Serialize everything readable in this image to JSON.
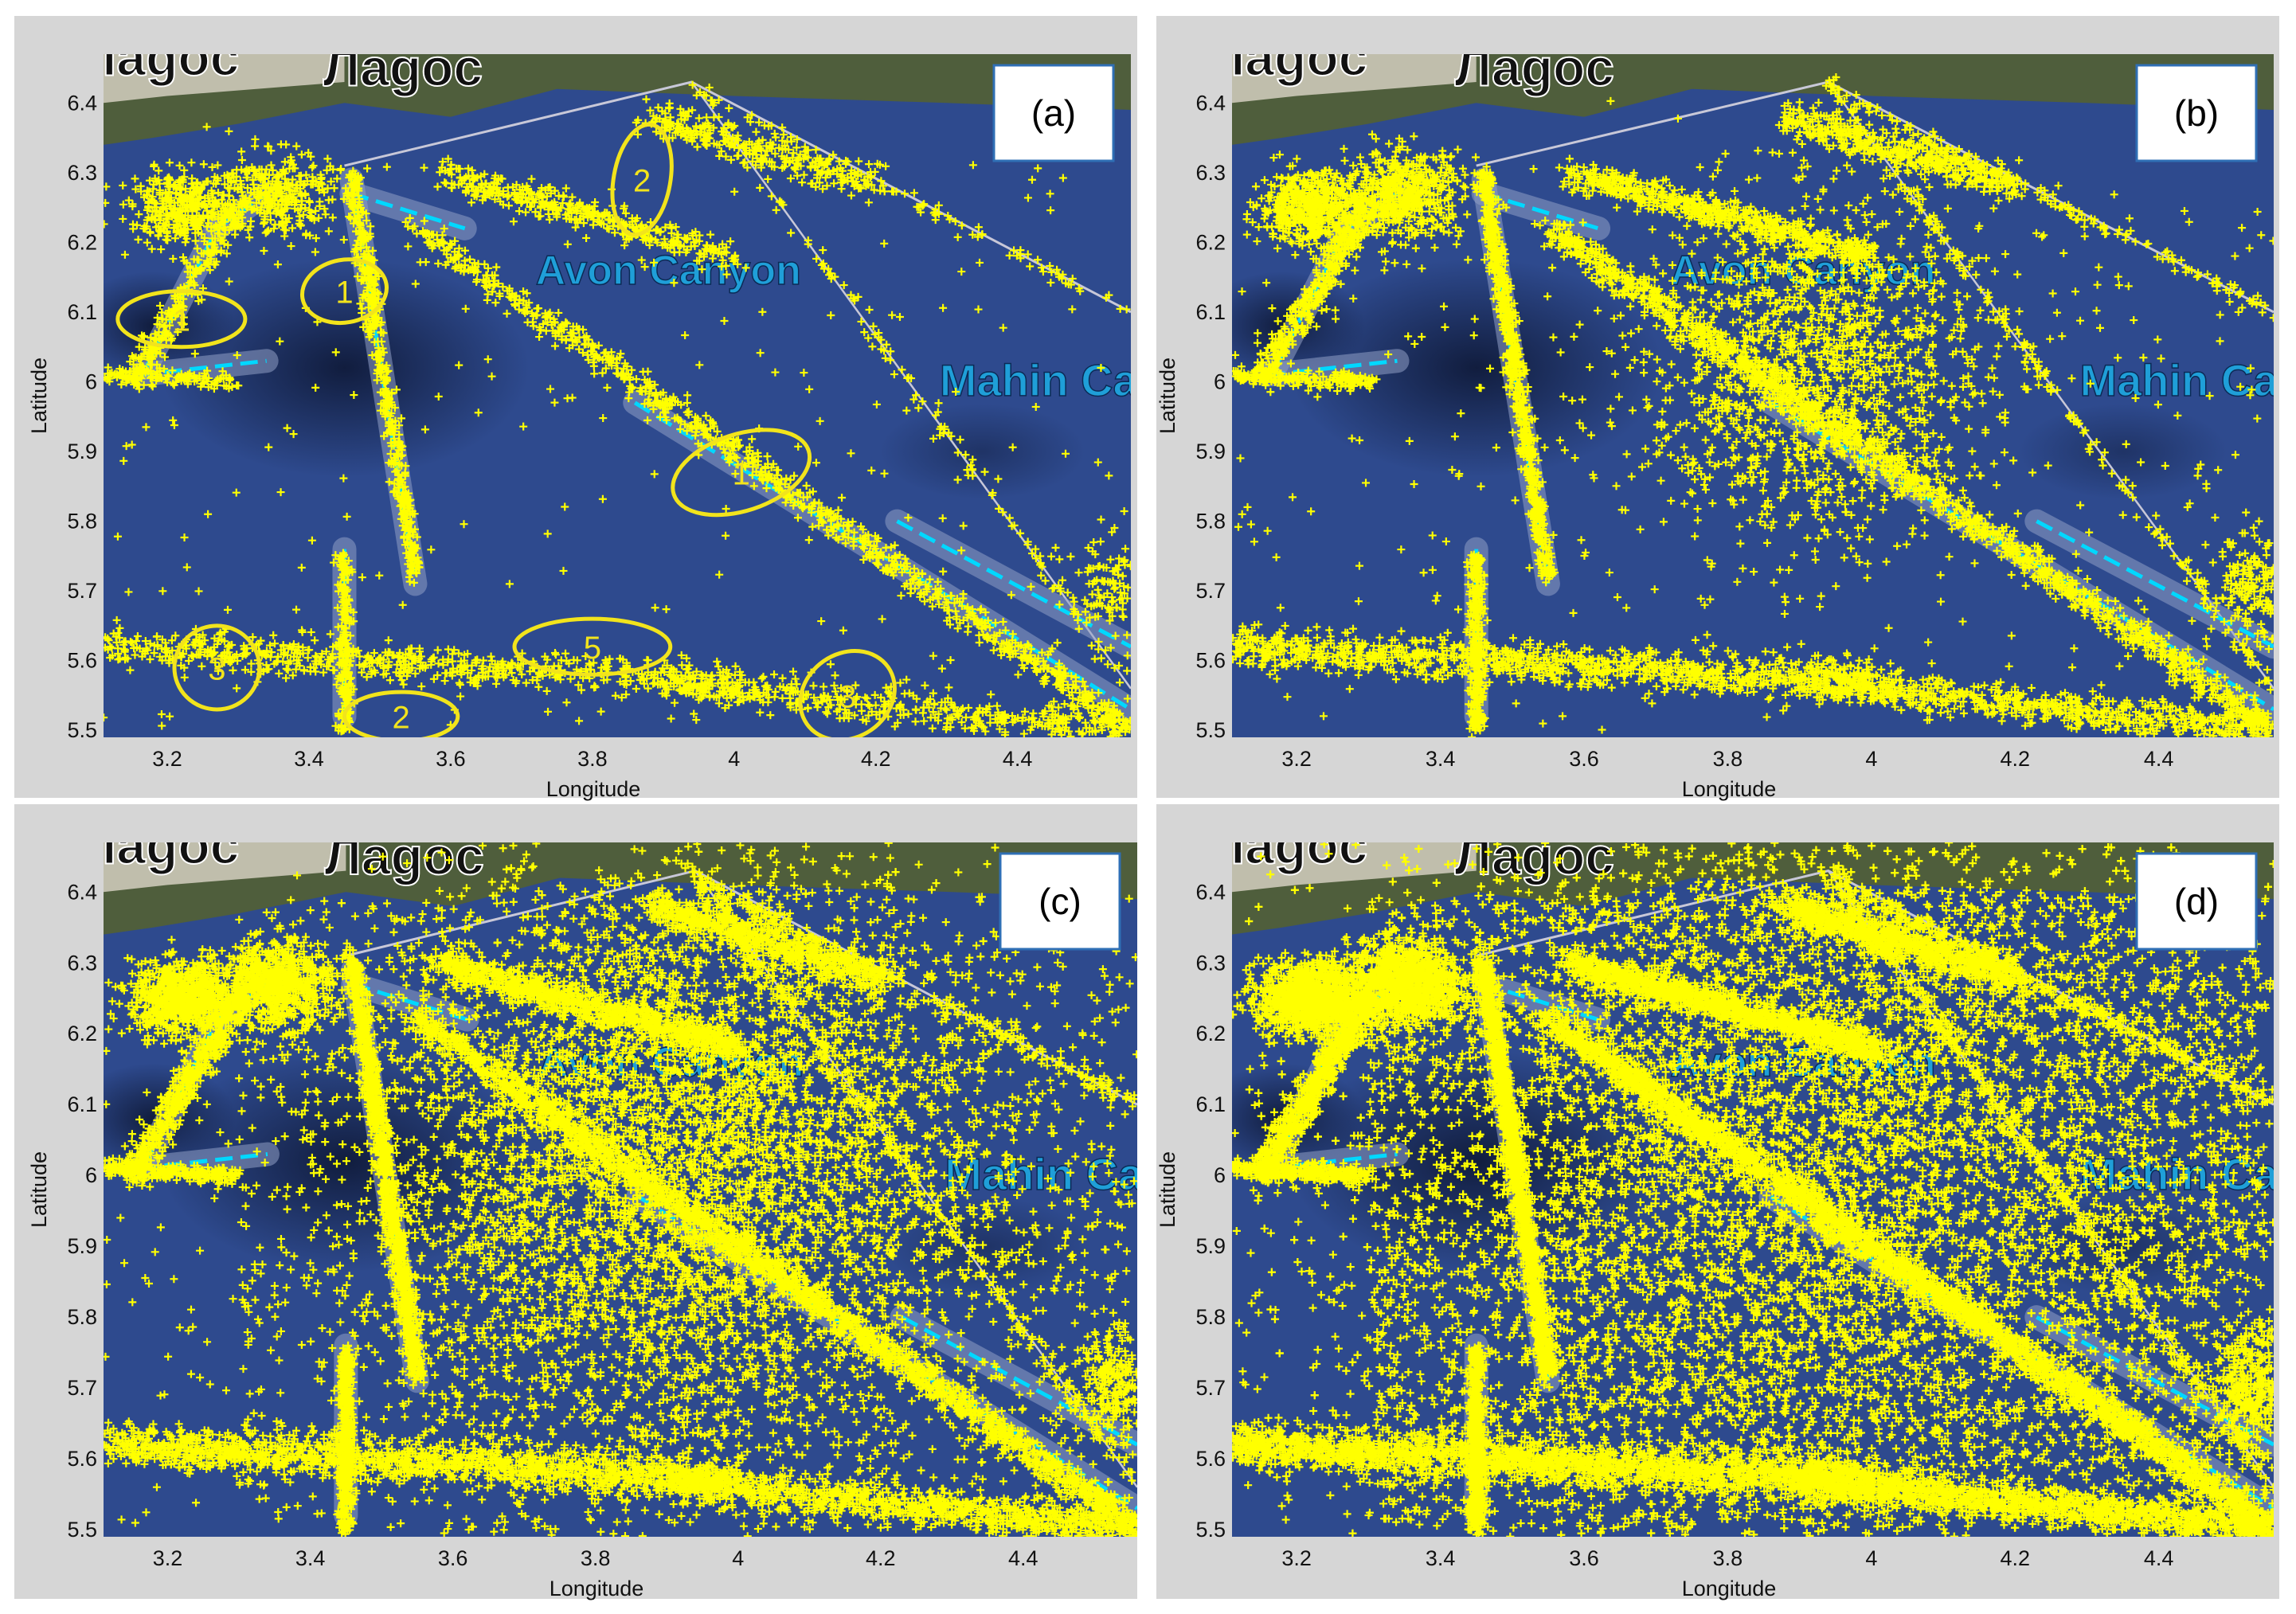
{
  "figure": {
    "background": "#ffffff",
    "panel_background": "#d6d6d6",
    "sea_color": "#2e4a8e",
    "deep_water_color": "#0c1530",
    "land_color": "#4f5e3c",
    "point_color": "#ffff00",
    "lane_color": "#00d8ff",
    "annotation_color": "#f2e41c",
    "map_labels": {
      "town": "Лagoс",
      "canyon": "Avon Canyon",
      "canyon2": "Mahin Car"
    }
  },
  "chart_data": [
    {
      "type": "scatter",
      "panel_label": "(a)",
      "xlabel": "Longitude",
      "ylabel": "Latitude",
      "xlim": [
        3.11,
        4.56
      ],
      "ylim": [
        5.49,
        6.47
      ],
      "xticks": [
        "3.2",
        "3.4",
        "3.6",
        "3.8",
        "4",
        "4.2",
        "4.4"
      ],
      "xtick_values": [
        3.2,
        3.4,
        3.6,
        3.8,
        4.0,
        4.2,
        4.4
      ],
      "yticks": [
        "5.5",
        "5.6",
        "5.7",
        "5.8",
        "5.9",
        "6",
        "6.1",
        "6.2",
        "6.3",
        "6.4"
      ],
      "ytick_values": [
        5.5,
        5.6,
        5.7,
        5.8,
        5.9,
        6.0,
        6.1,
        6.2,
        6.3,
        6.4
      ],
      "density": 1,
      "annotations": [
        {
          "label": "1",
          "x": 3.22,
          "y": 6.09,
          "rx": 0.09,
          "ry": 0.04
        },
        {
          "label": "1",
          "x": 3.45,
          "y": 6.13,
          "rx": 0.06,
          "ry": 0.045
        },
        {
          "label": "1",
          "x": 4.01,
          "y": 5.87,
          "rx": 0.1,
          "ry": 0.055
        },
        {
          "label": "2",
          "x": 3.87,
          "y": 6.29,
          "rx": 0.04,
          "ry": 0.08
        },
        {
          "label": "2",
          "x": 3.53,
          "y": 5.52,
          "rx": 0.08,
          "ry": 0.035
        },
        {
          "label": "3",
          "x": 3.27,
          "y": 5.59,
          "rx": 0.06,
          "ry": 0.06
        },
        {
          "label": "3",
          "x": 4.16,
          "y": 5.55,
          "rx": 0.07,
          "ry": 0.06
        },
        {
          "label": "5",
          "x": 3.8,
          "y": 5.62,
          "rx": 0.11,
          "ry": 0.04
        }
      ]
    },
    {
      "type": "scatter",
      "panel_label": "(b)",
      "xlabel": "Longitude",
      "ylabel": "Latitude",
      "xlim": [
        3.11,
        4.56
      ],
      "ylim": [
        5.49,
        6.47
      ],
      "xticks": [
        "3.2",
        "3.4",
        "3.6",
        "3.8",
        "4",
        "4.2",
        "4.4"
      ],
      "xtick_values": [
        3.2,
        3.4,
        3.6,
        3.8,
        4.0,
        4.2,
        4.4
      ],
      "yticks": [
        "5.5",
        "5.6",
        "5.7",
        "5.8",
        "5.9",
        "6",
        "6.1",
        "6.2",
        "6.3",
        "6.4"
      ],
      "ytick_values": [
        5.5,
        5.6,
        5.7,
        5.8,
        5.9,
        6.0,
        6.1,
        6.2,
        6.3,
        6.4
      ],
      "density": 2,
      "annotations": []
    },
    {
      "type": "scatter",
      "panel_label": "(c)",
      "xlabel": "Longitude",
      "ylabel": "Latitude",
      "xlim": [
        3.11,
        4.56
      ],
      "ylim": [
        5.49,
        6.47
      ],
      "xticks": [
        "3.2",
        "3.4",
        "3.6",
        "3.8",
        "4",
        "4.2",
        "4.4"
      ],
      "xtick_values": [
        3.2,
        3.4,
        3.6,
        3.8,
        4.0,
        4.2,
        4.4
      ],
      "yticks": [
        "5.5",
        "5.6",
        "5.7",
        "5.8",
        "5.9",
        "6",
        "6.1",
        "6.2",
        "6.3",
        "6.4"
      ],
      "ytick_values": [
        5.5,
        5.6,
        5.7,
        5.8,
        5.9,
        6.0,
        6.1,
        6.2,
        6.3,
        6.4
      ],
      "density": 3,
      "annotations": []
    },
    {
      "type": "scatter",
      "panel_label": "(d)",
      "xlabel": "Longitude",
      "ylabel": "Latitude",
      "xlim": [
        3.11,
        4.56
      ],
      "ylim": [
        5.49,
        6.47
      ],
      "xticks": [
        "3.2",
        "3.4",
        "3.6",
        "3.8",
        "4",
        "4.2",
        "4.4"
      ],
      "xtick_values": [
        3.2,
        3.4,
        3.6,
        3.8,
        4.0,
        4.2,
        4.4
      ],
      "yticks": [
        "5.5",
        "5.6",
        "5.7",
        "5.8",
        "5.9",
        "6",
        "6.1",
        "6.2",
        "6.3",
        "6.4"
      ],
      "ytick_values": [
        5.5,
        5.6,
        5.7,
        5.8,
        5.9,
        6.0,
        6.1,
        6.2,
        6.3,
        6.4
      ],
      "density": 4,
      "annotations": []
    }
  ]
}
